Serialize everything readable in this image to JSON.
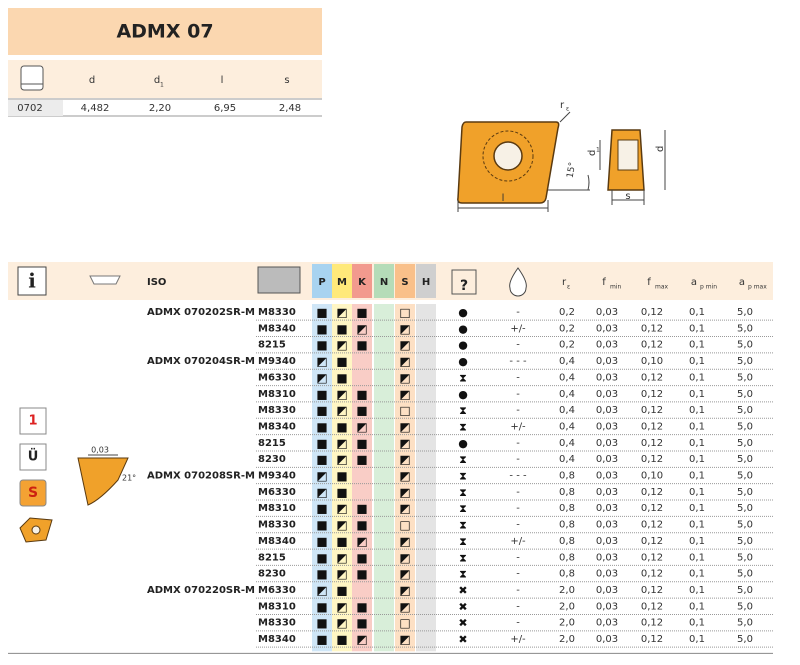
{
  "header": {
    "title": "ADMX 07"
  },
  "dimensions": {
    "columns": [
      {
        "label": "d"
      },
      {
        "label": "d",
        "sub": "1"
      },
      {
        "label": "l"
      },
      {
        "label": "s"
      }
    ],
    "row": [
      "0702",
      "4,482",
      "2,20",
      "6,95",
      "2,48"
    ]
  },
  "diagram": {
    "radius": {
      "label": "r",
      "sub": "ε"
    },
    "inscribed": {
      "label": "d",
      "sub": "1"
    },
    "length": "l",
    "angle": "15°",
    "thickness": "s",
    "diameter": "d"
  },
  "side_icons": [
    "1",
    "Ü",
    "S"
  ],
  "edge": {
    "hone": "0,03",
    "angle": "21°"
  },
  "table": {
    "columns": [
      "ISO",
      "P",
      "M",
      "K",
      "N",
      "S",
      "H",
      {
        "label": "r",
        "sub": "ε"
      },
      {
        "label": "f",
        "sub": "min"
      },
      {
        "label": "f",
        "sub": "max"
      },
      {
        "label": "a",
        "sub": "p min"
      },
      {
        "label": "a",
        "sub": "p max"
      }
    ],
    "groups": [
      {
        "iso": "ADMX 070202SR-M",
        "rows": [
          [
            "M8330",
            "■",
            "◩",
            "■",
            null,
            "□",
            null,
            "●",
            "-",
            "0,2",
            "0,03",
            "0,12",
            "0,1",
            "5,0"
          ],
          [
            "M8340",
            "■",
            "■",
            "◩",
            null,
            "◩",
            null,
            "●",
            "+/-",
            "0,2",
            "0,03",
            "0,12",
            "0,1",
            "5,0"
          ],
          [
            "8215",
            "■",
            "◩",
            "■",
            null,
            "◩",
            null,
            "●",
            "-",
            "0,2",
            "0,03",
            "0,12",
            "0,1",
            "5,0"
          ]
        ]
      },
      {
        "iso": "ADMX 070204SR-M",
        "rows": [
          [
            "M9340",
            "◩",
            "■",
            null,
            null,
            "◩",
            null,
            "●",
            "- - -",
            "0,4",
            "0,03",
            "0,10",
            "0,1",
            "5,0"
          ],
          [
            "M6330",
            "◩",
            "■",
            null,
            null,
            "◩",
            null,
            "⧗",
            "-",
            "0,4",
            "0,03",
            "0,12",
            "0,1",
            "5,0"
          ],
          [
            "M8310",
            "■",
            "◩",
            "■",
            null,
            "◩",
            null,
            "●",
            "-",
            "0,4",
            "0,03",
            "0,12",
            "0,1",
            "5,0"
          ],
          [
            "M8330",
            "■",
            "◩",
            "■",
            null,
            "□",
            null,
            "⧗",
            "-",
            "0,4",
            "0,03",
            "0,12",
            "0,1",
            "5,0"
          ],
          [
            "M8340",
            "■",
            "■",
            "◩",
            null,
            "◩",
            null,
            "⧗",
            "+/-",
            "0,4",
            "0,03",
            "0,12",
            "0,1",
            "5,0"
          ],
          [
            "8215",
            "■",
            "◩",
            "■",
            null,
            "◩",
            null,
            "●",
            "-",
            "0,4",
            "0,03",
            "0,12",
            "0,1",
            "5,0"
          ],
          [
            "8230",
            "■",
            "◩",
            "■",
            null,
            "◩",
            null,
            "⧗",
            "-",
            "0,4",
            "0,03",
            "0,12",
            "0,1",
            "5,0"
          ]
        ]
      },
      {
        "iso": "ADMX 070208SR-M",
        "rows": [
          [
            "M9340",
            "◩",
            "■",
            null,
            null,
            "◩",
            null,
            "⧗",
            "- - -",
            "0,8",
            "0,03",
            "0,10",
            "0,1",
            "5,0"
          ],
          [
            "M6330",
            "◩",
            "■",
            null,
            null,
            "◩",
            null,
            "⧗",
            "-",
            "0,8",
            "0,03",
            "0,12",
            "0,1",
            "5,0"
          ],
          [
            "M8310",
            "■",
            "◩",
            "■",
            null,
            "◩",
            null,
            "⧗",
            "-",
            "0,8",
            "0,03",
            "0,12",
            "0,1",
            "5,0"
          ],
          [
            "M8330",
            "■",
            "◩",
            "■",
            null,
            "□",
            null,
            "⧗",
            "-",
            "0,8",
            "0,03",
            "0,12",
            "0,1",
            "5,0"
          ],
          [
            "M8340",
            "■",
            "■",
            "◩",
            null,
            "◩",
            null,
            "⧗",
            "+/-",
            "0,8",
            "0,03",
            "0,12",
            "0,1",
            "5,0"
          ],
          [
            "8215",
            "■",
            "◩",
            "■",
            null,
            "◩",
            null,
            "⧗",
            "-",
            "0,8",
            "0,03",
            "0,12",
            "0,1",
            "5,0"
          ],
          [
            "8230",
            "■",
            "◩",
            "■",
            null,
            "◩",
            null,
            "⧗",
            "-",
            "0,8",
            "0,03",
            "0,12",
            "0,1",
            "5,0"
          ]
        ]
      },
      {
        "iso": "ADMX 070220SR-M",
        "rows": [
          [
            "M6330",
            "◩",
            "■",
            null,
            null,
            "◩",
            null,
            "✖",
            "-",
            "2,0",
            "0,03",
            "0,12",
            "0,1",
            "5,0"
          ],
          [
            "M8310",
            "■",
            "◩",
            "■",
            null,
            "◩",
            null,
            "✖",
            "-",
            "2,0",
            "0,03",
            "0,12",
            "0,1",
            "5,0"
          ],
          [
            "M8330",
            "■",
            "◩",
            "■",
            null,
            "□",
            null,
            "✖",
            "-",
            "2,0",
            "0,03",
            "0,12",
            "0,1",
            "5,0"
          ],
          [
            "M8340",
            "■",
            "■",
            "◩",
            null,
            "◩",
            null,
            "✖",
            "+/-",
            "2,0",
            "0,03",
            "0,12",
            "0,1",
            "5,0"
          ]
        ]
      }
    ]
  }
}
